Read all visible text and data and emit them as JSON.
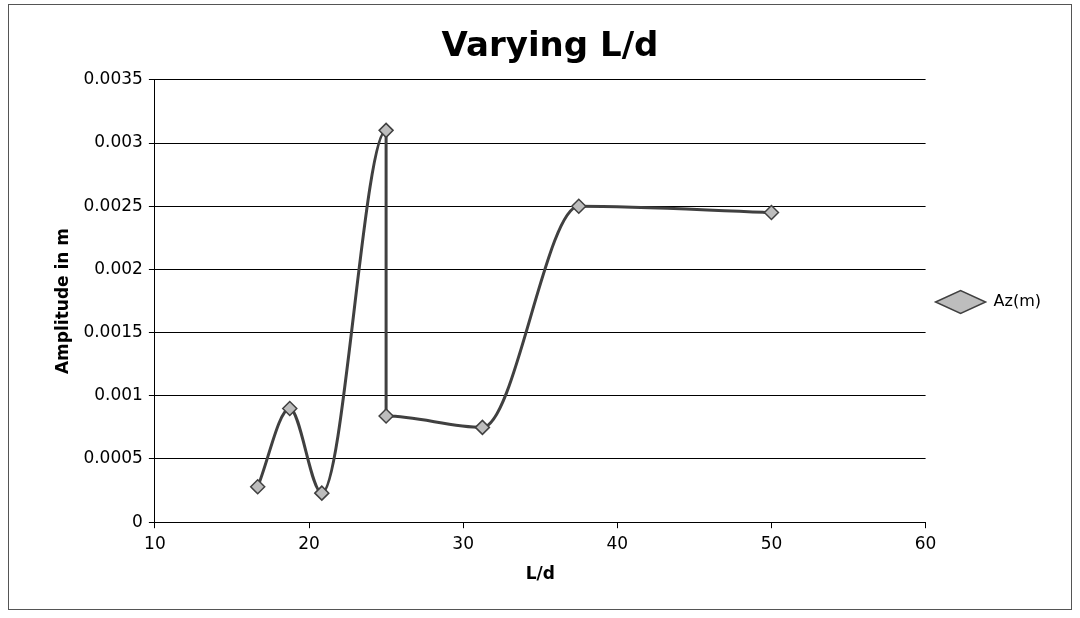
{
  "chart_data": {
    "type": "line",
    "title": "Varying L/d",
    "xlabel": "L/d",
    "ylabel": "Amplitude in m",
    "x": [
      16.67,
      18.75,
      20.83,
      25,
      25,
      31.25,
      37.5,
      50
    ],
    "series": [
      {
        "name": "Az(m)",
        "color": "#404040",
        "values": [
          0.00028,
          0.0009,
          0.00023,
          0.0031,
          0.00084,
          0.00075,
          0.0025,
          0.00245
        ]
      }
    ],
    "xlim": [
      10,
      60
    ],
    "xticks": [
      10,
      20,
      30,
      40,
      50,
      60
    ],
    "ylim": [
      0,
      0.0035
    ],
    "yticks": [
      0,
      0.0005,
      0.001,
      0.0015,
      0.002,
      0.0025,
      0.003,
      0.0035
    ],
    "grid": "y",
    "legend": "right",
    "marker": "diamond",
    "line_style": "solid"
  }
}
